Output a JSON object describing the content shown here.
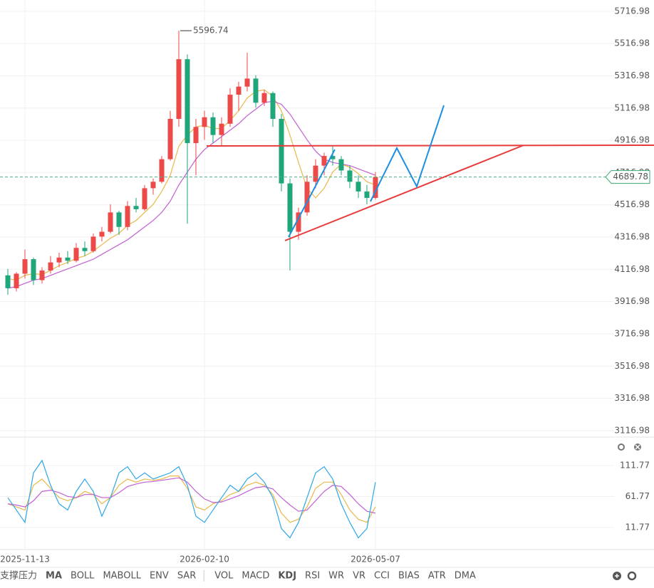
{
  "chart_data": {
    "type": "candlestick",
    "categories": [
      null,
      null,
      "2025-11-13",
      null,
      null,
      null,
      null,
      null,
      null,
      null,
      null,
      null,
      null,
      null,
      null,
      null,
      null,
      null,
      null,
      null,
      null,
      null,
      null,
      "2026-02-10",
      null,
      null,
      null,
      null,
      null,
      null,
      null,
      null,
      null,
      null,
      null,
      null,
      null,
      null,
      null,
      null,
      null,
      null,
      null,
      "2026-05-07"
    ],
    "open": [
      4080,
      4000,
      4090,
      4180,
      4050,
      4110,
      4160,
      4190,
      4170,
      4250,
      4230,
      4320,
      4350,
      4470,
      4380,
      4510,
      4490,
      4620,
      4660,
      4800,
      5050,
      5420,
      4900,
      5000,
      5060,
      4950,
      5020,
      5200,
      5250,
      5300,
      5150,
      5210,
      5050,
      4650,
      4350,
      4470,
      4660,
      4760,
      4820,
      4800,
      4730,
      4660,
      4600,
      4560
    ],
    "high": [
      4120,
      4100,
      4240,
      4190,
      4130,
      4200,
      4220,
      4230,
      4280,
      4290,
      4340,
      4380,
      4520,
      4480,
      4540,
      4560,
      4640,
      4680,
      4820,
      5100,
      5596.74,
      5450,
      5050,
      5100,
      5090,
      5060,
      5240,
      5280,
      5460,
      5320,
      5230,
      5220,
      5080,
      4680,
      4500,
      4700,
      4800,
      4840,
      4880,
      4820,
      4760,
      4700,
      4640,
      4720
    ],
    "low": [
      3960,
      3980,
      4060,
      4020,
      4030,
      4090,
      4130,
      4150,
      4160,
      4200,
      4220,
      4290,
      4340,
      4330,
      4360,
      4470,
      4480,
      4580,
      4650,
      4790,
      5000,
      4400,
      4700,
      4920,
      4900,
      4880,
      5000,
      5100,
      5220,
      5120,
      5130,
      5000,
      4600,
      4110,
      4300,
      4450,
      4620,
      4700,
      4760,
      4700,
      4620,
      4560,
      4520,
      4550
    ],
    "close": [
      4000,
      4090,
      4180,
      4050,
      4110,
      4160,
      4190,
      4170,
      4250,
      4230,
      4320,
      4350,
      4470,
      4380,
      4510,
      4490,
      4620,
      4660,
      4800,
      5050,
      5420,
      4900,
      5000,
      5060,
      4950,
      5020,
      5200,
      5250,
      5300,
      5150,
      5210,
      5050,
      4650,
      4350,
      4470,
      4660,
      4760,
      4820,
      4800,
      4730,
      4660,
      4600,
      4560,
      4689.78
    ],
    "up_color": "#eb4a48",
    "down_color": "#1fa67a",
    "ylim": [
      3077,
      5787
    ],
    "yticks": [
      5716.98,
      5516.98,
      5316.98,
      5116.98,
      4916.98,
      4716.98,
      4516.98,
      4316.98,
      4116.98,
      3916.98,
      3716.98,
      3516.98,
      3316.98,
      3116.98
    ],
    "series": [
      {
        "color": "#e8b84a",
        "values": [
          4060,
          4050,
          4080,
          4090,
          4085,
          4110,
          4140,
          4160,
          4185,
          4200,
          4230,
          4270,
          4310,
          4340,
          4390,
          4420,
          4470,
          4520,
          4600,
          4700,
          4880,
          4950,
          5000,
          5010,
          4990,
          4990,
          5040,
          5100,
          5180,
          5220,
          5230,
          5190,
          5100,
          4950,
          4780,
          4620,
          4560,
          4620,
          4720,
          4770,
          4750,
          4710,
          4660,
          4640
        ]
      },
      {
        "color": "#c25fd4",
        "values": [
          4000,
          4010,
          4030,
          4050,
          4060,
          4080,
          4100,
          4120,
          4140,
          4160,
          4180,
          4210,
          4240,
          4270,
          4300,
          4340,
          4380,
          4420,
          4470,
          4540,
          4640,
          4720,
          4800,
          4860,
          4900,
          4940,
          4980,
          5020,
          5070,
          5110,
          5150,
          5160,
          5140,
          5080,
          5000,
          4920,
          4850,
          4800,
          4780,
          4770,
          4760,
          4740,
          4720,
          4700
        ]
      }
    ],
    "kdj": {
      "ylim": [
        -21.6,
        139.4
      ],
      "yticks": [
        111.77,
        61.77,
        11.77
      ],
      "series": [
        {
          "color": "#e8b84a",
          "values": [
            50,
            45,
            40,
            80,
            90,
            75,
            60,
            55,
            60,
            70,
            65,
            50,
            60,
            80,
            90,
            85,
            90,
            88,
            90,
            95,
            95,
            75,
            45,
            40,
            50,
            55,
            65,
            70,
            80,
            85,
            80,
            65,
            35,
            20,
            25,
            45,
            75,
            85,
            85,
            65,
            40,
            25,
            20,
            45
          ]
        },
        {
          "color": "#c25fd4",
          "values": [
            50,
            48,
            45,
            55,
            70,
            72,
            68,
            62,
            60,
            65,
            65,
            60,
            60,
            68,
            78,
            82,
            85,
            86,
            88,
            90,
            92,
            85,
            70,
            58,
            52,
            53,
            58,
            63,
            70,
            76,
            78,
            74,
            60,
            48,
            38,
            40,
            55,
            70,
            80,
            78,
            65,
            50,
            38,
            35
          ]
        },
        {
          "color": "#2ea7e8",
          "values": [
            60,
            40,
            20,
            100,
            120,
            80,
            50,
            40,
            70,
            90,
            70,
            30,
            60,
            100,
            110,
            90,
            100,
            90,
            95,
            100,
            110,
            80,
            30,
            20,
            40,
            60,
            80,
            70,
            90,
            100,
            85,
            60,
            10,
            -5,
            20,
            60,
            100,
            110,
            90,
            50,
            20,
            -5,
            10,
            85
          ]
        }
      ]
    }
  },
  "toolbar": {
    "items": [
      {
        "label": "支撑压力",
        "active": false
      },
      {
        "label": "MA",
        "active": true
      },
      {
        "label": "BOLL",
        "active": false
      },
      {
        "label": "MABOLL",
        "active": false
      },
      {
        "label": "ENV",
        "active": false
      },
      {
        "label": "SAR",
        "active": false
      },
      {
        "label": "VOL",
        "active": false
      },
      {
        "label": "MACD",
        "active": false
      },
      {
        "label": "KDJ",
        "active": true
      },
      {
        "label": "RSI",
        "active": false
      },
      {
        "label": "WR",
        "active": false
      },
      {
        "label": "VR",
        "active": false
      },
      {
        "label": "CCI",
        "active": false
      },
      {
        "label": "BIAS",
        "active": false
      },
      {
        "label": "ATR",
        "active": false
      },
      {
        "label": "DMA",
        "active": false
      }
    ]
  }
}
